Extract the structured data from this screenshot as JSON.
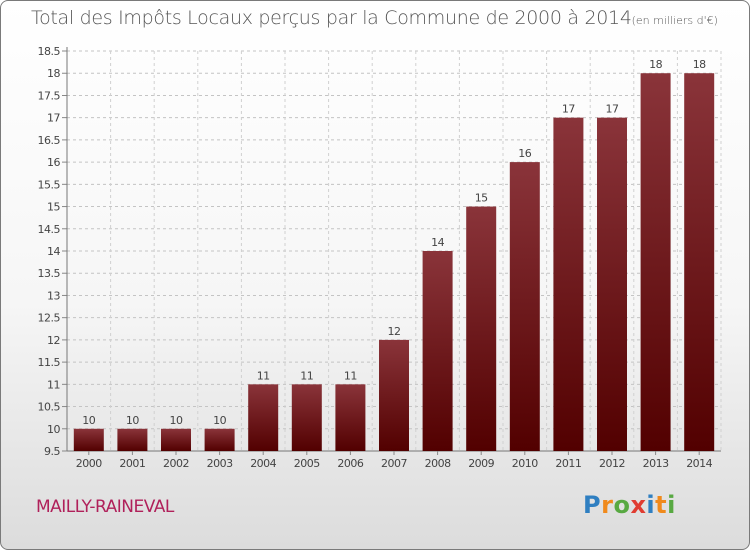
{
  "title": "Total des Impôts Locaux perçus par la Commune de 2000 à 2014",
  "title_unit": "(en milliers d'€)",
  "commune": "MAILLY-RAINEVAL",
  "logo": {
    "text": "Proxiti",
    "letters": [
      {
        "ch": "P",
        "color": "#2f7fc1"
      },
      {
        "ch": "r",
        "color": "#f08a1c"
      },
      {
        "ch": "o",
        "color": "#58a942"
      },
      {
        "ch": "x",
        "color": "#e03c31"
      },
      {
        "ch": "i",
        "color": "#2f7fc1"
      },
      {
        "ch": "t",
        "color": "#f08a1c"
      },
      {
        "ch": "i",
        "color": "#58a942"
      }
    ]
  },
  "colors": {
    "bar_top": "#8a343a",
    "bar_bottom": "#520000",
    "commune": "#b0205a"
  },
  "chart_data": {
    "type": "bar",
    "title": "Total des Impôts Locaux perçus par la Commune de 2000 à 2014",
    "categories": [
      "2000",
      "2001",
      "2002",
      "2003",
      "2004",
      "2005",
      "2006",
      "2007",
      "2008",
      "2009",
      "2010",
      "2011",
      "2012",
      "2013",
      "2014"
    ],
    "values": [
      10,
      10,
      10,
      10,
      11,
      11,
      11,
      12,
      14,
      15,
      16,
      17,
      17,
      18,
      18
    ],
    "value_labels": [
      "10",
      "10",
      "10",
      "10",
      "11",
      "11",
      "11",
      "12",
      "14",
      "15",
      "16",
      "17",
      "17",
      "18",
      "18"
    ],
    "xlabel": "",
    "ylabel": "",
    "ylim": [
      9.5,
      18.5
    ],
    "yticks": [
      9.5,
      10,
      10.5,
      11,
      11.5,
      12,
      12.5,
      13,
      13.5,
      14,
      14.5,
      15,
      15.5,
      16,
      16.5,
      17,
      17.5,
      18,
      18.5
    ],
    "ytick_labels": [
      "9.5",
      "10",
      "10.5",
      "11",
      "11.5",
      "12",
      "12.5",
      "13",
      "13.5",
      "14",
      "14.5",
      "15",
      "15.5",
      "16",
      "16.5",
      "17",
      "17.5",
      "18",
      "18.5"
    ],
    "grid": true
  }
}
